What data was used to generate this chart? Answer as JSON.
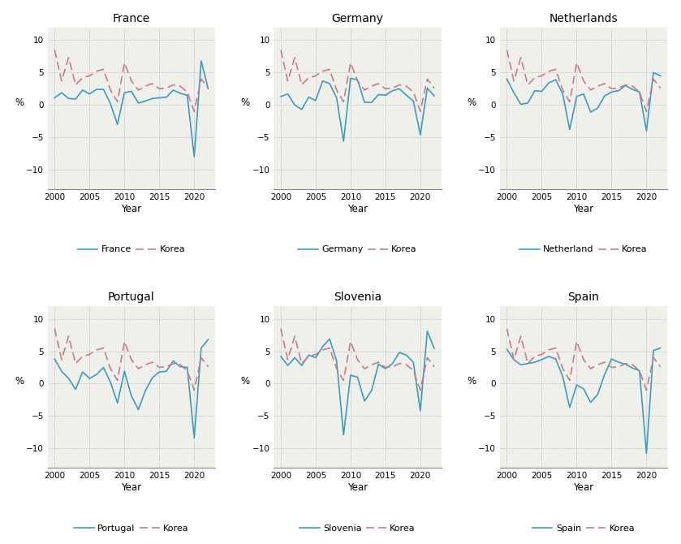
{
  "years": [
    2000,
    2001,
    2002,
    2003,
    2004,
    2005,
    2006,
    2007,
    2008,
    2009,
    2010,
    2011,
    2012,
    2013,
    2014,
    2015,
    2016,
    2017,
    2018,
    2019,
    2020,
    2021,
    2022
  ],
  "korea": [
    8.5,
    3.7,
    7.3,
    3.1,
    4.2,
    4.5,
    5.2,
    5.5,
    2.3,
    0.5,
    6.5,
    3.7,
    2.3,
    2.9,
    3.3,
    2.5,
    2.6,
    3.1,
    2.9,
    2.0,
    -1.0,
    4.0,
    2.6
  ],
  "france": [
    1.1,
    1.9,
    1.0,
    0.9,
    2.3,
    1.7,
    2.4,
    2.4,
    0.2,
    -3.0,
    1.9,
    2.1,
    0.3,
    0.6,
    1.0,
    1.1,
    1.2,
    2.3,
    1.8,
    1.5,
    -8.0,
    6.8,
    2.5
  ],
  "germany": [
    1.3,
    1.7,
    0.0,
    -0.7,
    1.2,
    0.7,
    3.7,
    3.3,
    1.1,
    -5.6,
    4.1,
    3.9,
    0.4,
    0.4,
    1.6,
    1.5,
    2.2,
    2.5,
    1.5,
    0.6,
    -4.6,
    2.6,
    1.4
  ],
  "netherlands": [
    4.0,
    1.9,
    0.1,
    0.3,
    2.2,
    2.1,
    3.4,
    3.9,
    1.7,
    -3.8,
    1.3,
    1.7,
    -1.1,
    -0.5,
    1.4,
    2.0,
    2.2,
    3.0,
    2.4,
    2.0,
    -4.0,
    5.0,
    4.5
  ],
  "portugal": [
    3.8,
    1.9,
    0.8,
    -0.9,
    1.8,
    0.8,
    1.4,
    2.5,
    0.2,
    -3.0,
    1.9,
    -1.9,
    -4.0,
    -1.1,
    0.9,
    1.8,
    1.9,
    3.5,
    2.6,
    2.5,
    -8.4,
    5.5,
    6.8
  ],
  "slovenia": [
    4.2,
    2.8,
    4.0,
    2.8,
    4.4,
    4.0,
    5.7,
    6.9,
    3.5,
    -7.9,
    1.3,
    1.0,
    -2.7,
    -1.1,
    3.0,
    2.3,
    3.1,
    4.8,
    4.4,
    3.3,
    -4.2,
    8.1,
    5.4
  ],
  "spain": [
    5.3,
    3.7,
    2.9,
    3.1,
    3.3,
    3.7,
    4.2,
    3.8,
    1.1,
    -3.7,
    -0.2,
    -0.8,
    -2.9,
    -1.7,
    1.4,
    3.8,
    3.3,
    3.0,
    2.4,
    2.0,
    -10.8,
    5.1,
    5.5
  ],
  "country_line_color": "#3a9dbf",
  "korea_line_color": "#c97a8a",
  "bg_color": "#f0f0eb",
  "fig_bg_color": "#ffffff",
  "countries": [
    "France",
    "Germany",
    "Netherlands",
    "Portugal",
    "Slovenia",
    "Spain"
  ],
  "country_keys": [
    "france",
    "germany",
    "netherlands",
    "portugal",
    "slovenia",
    "spain"
  ],
  "legend_labels": [
    "France",
    "Germany",
    "Netherland",
    "Portugal",
    "Slovenia",
    "Spain"
  ],
  "ylim": [
    -13,
    12
  ],
  "yticks": [
    -10,
    -5,
    0,
    5,
    10
  ],
  "xticks": [
    2000,
    2005,
    2010,
    2015,
    2020
  ],
  "xlabel": "Year",
  "ylabel": "%"
}
